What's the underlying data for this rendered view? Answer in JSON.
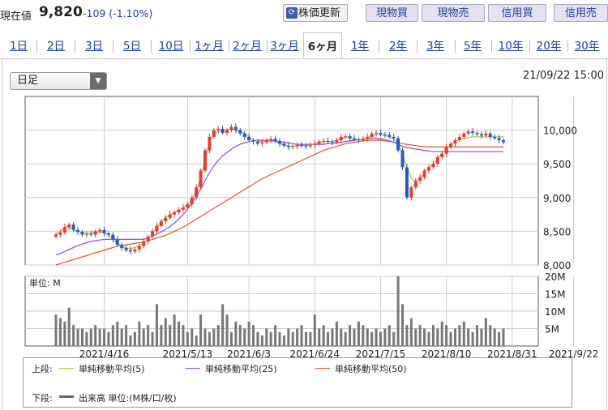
{
  "header": {
    "price_label": "現在値",
    "price": "9,820",
    "change": "-109 (-1.10%)",
    "update_button": "株価更新",
    "buttons": [
      "現物買",
      "現物売",
      "信用買",
      "信用売"
    ]
  },
  "tabs": [
    "1日",
    "2日",
    "3日",
    "5日",
    "10日",
    "1ヶ月",
    "2ヶ月",
    "3ヶ月",
    "6ヶ月",
    "1年",
    "2年",
    "3年",
    "5年",
    "10年",
    "20年",
    "30年"
  ],
  "selected_tab": "6ヶ月",
  "period_select": "日足",
  "datetime": "21/09/22 15:00",
  "legend": {
    "upper_label": "上段:",
    "lower_label": "下段:",
    "ma5": "単純移動平均(5)",
    "ma25": "単純移動平均(25)",
    "ma50": "単純移動平均(50)",
    "volume": "出来高 単位:(M株/口/枚)"
  },
  "colors": {
    "up": "#e23b3b",
    "down": "#2b55c8",
    "ma5": "#a8c832",
    "ma25": "#9a46e0",
    "ma50": "#e2552a",
    "volume": "#777777"
  },
  "chart_data": {
    "type": "candlestick",
    "x_ticks": [
      "2021/4/16",
      "2021/5/13",
      "2021/6/3",
      "2021/6/24",
      "2021/7/15",
      "2021/8/10",
      "2021/8/31",
      "2021/9/22"
    ],
    "x_tick_index": [
      11,
      30,
      44,
      59,
      74,
      89,
      104,
      118
    ],
    "ylim": [
      8000,
      10500
    ],
    "y_ticks": [
      8000,
      8500,
      9000,
      9500,
      10000
    ],
    "y_tick_labels": [
      "8,000",
      "8,500",
      "9,000",
      "9,500",
      "10,000"
    ],
    "volume_unit_label": "単位: M",
    "volume_ylim": [
      0,
      20
    ],
    "volume_ticks": [
      5,
      10,
      15,
      20
    ],
    "volume_tick_labels": [
      "5M",
      "10M",
      "15M",
      "20M"
    ],
    "series": [
      {
        "name": "単純移動平均(5)",
        "values": [
          8450,
          8500,
          8560,
          8560,
          8520,
          8500,
          8480,
          8470,
          8470,
          8480,
          8490,
          8480,
          8440,
          8380,
          8320,
          8280,
          8250,
          8240,
          8260,
          8290,
          8320,
          8380,
          8460,
          8560,
          8650,
          8710,
          8740,
          8780,
          8810,
          8850,
          8900,
          8980,
          9100,
          9300,
          9550,
          9820,
          9950,
          9980,
          9990,
          10000,
          10020,
          10000,
          9980,
          9950,
          9900,
          9860,
          9840,
          9830,
          9830,
          9830,
          9830,
          9800,
          9780,
          9760,
          9760,
          9770,
          9770,
          9770,
          9780,
          9800,
          9820,
          9830,
          9830,
          9830,
          9850,
          9880,
          9890,
          9880,
          9860,
          9860,
          9870,
          9890,
          9920,
          9930,
          9930,
          9920,
          9900,
          9870,
          9800,
          9650,
          9450,
          9280,
          9230,
          9290,
          9370,
          9440,
          9500,
          9580,
          9650,
          9720,
          9780,
          9830,
          9860,
          9880,
          9890,
          9900,
          9900,
          9900,
          9900,
          9900,
          9900,
          9900,
          9900
        ]
      },
      {
        "name": "単純移動平均(25)",
        "values": [
          8150,
          8170,
          8200,
          8230,
          8260,
          8290,
          8310,
          8330,
          8350,
          8360,
          8370,
          8380,
          8380,
          8380,
          8380,
          8380,
          8380,
          8380,
          8380,
          8380,
          8380,
          8400,
          8430,
          8460,
          8490,
          8530,
          8570,
          8620,
          8680,
          8750,
          8830,
          8920,
          9020,
          9130,
          9250,
          9370,
          9470,
          9550,
          9620,
          9670,
          9720,
          9760,
          9790,
          9810,
          9830,
          9840,
          9850,
          9850,
          9850,
          9850,
          9840,
          9830,
          9820,
          9810,
          9800,
          9790,
          9790,
          9790,
          9790,
          9790,
          9790,
          9790,
          9800,
          9800,
          9810,
          9820,
          9830,
          9840,
          9850,
          9860,
          9870,
          9880,
          9880,
          9880,
          9870,
          9860,
          9840,
          9820,
          9790,
          9760,
          9740,
          9730,
          9720,
          9710,
          9700,
          9690,
          9680,
          9680,
          9680,
          9680,
          9680,
          9680,
          9680,
          9680,
          9680,
          9680,
          9680,
          9680,
          9680,
          9680,
          9680,
          9680,
          9680
        ]
      },
      {
        "name": "単純移動平均(50)",
        "values": [
          8000,
          8020,
          8040,
          8060,
          8080,
          8100,
          8120,
          8140,
          8160,
          8180,
          8200,
          8220,
          8240,
          8260,
          8280,
          8290,
          8300,
          8310,
          8320,
          8330,
          8340,
          8360,
          8380,
          8400,
          8420,
          8440,
          8470,
          8500,
          8530,
          8560,
          8600,
          8640,
          8680,
          8720,
          8760,
          8800,
          8840,
          8880,
          8920,
          8960,
          9000,
          9040,
          9080,
          9120,
          9160,
          9200,
          9240,
          9280,
          9310,
          9340,
          9370,
          9400,
          9430,
          9460,
          9490,
          9520,
          9550,
          9580,
          9610,
          9640,
          9670,
          9700,
          9720,
          9740,
          9760,
          9780,
          9800,
          9810,
          9820,
          9830,
          9840,
          9850,
          9850,
          9850,
          9850,
          9840,
          9830,
          9820,
          9810,
          9800,
          9790,
          9780,
          9770,
          9760,
          9755,
          9750,
          9750,
          9750,
          9750,
          9750,
          9750,
          9750,
          9750,
          9750,
          9750,
          9750,
          9750,
          9750,
          9750,
          9750,
          9750,
          9750,
          9750
        ]
      },
      {
        "name": "close",
        "values": [
          8450,
          8480,
          8560,
          8600,
          8520,
          8490,
          8450,
          8460,
          8450,
          8500,
          8520,
          8470,
          8450,
          8380,
          8300,
          8250,
          8220,
          8200,
          8230,
          8280,
          8350,
          8420,
          8500,
          8580,
          8650,
          8700,
          8750,
          8780,
          8820,
          8850,
          8900,
          9000,
          9150,
          9400,
          9700,
          9900,
          10000,
          10020,
          9960,
          10000,
          10050,
          10000,
          9950,
          9900,
          9850,
          9830,
          9800,
          9820,
          9850,
          9870,
          9840,
          9800,
          9770,
          9750,
          9760,
          9780,
          9770,
          9760,
          9780,
          9800,
          9830,
          9840,
          9830,
          9820,
          9850,
          9900,
          9910,
          9880,
          9860,
          9850,
          9870,
          9900,
          9950,
          9960,
          9940,
          9930,
          9900,
          9880,
          9700,
          9450,
          9000,
          9150,
          9250,
          9300,
          9400,
          9450,
          9500,
          9600,
          9650,
          9750,
          9800,
          9850,
          9900,
          9950,
          9980,
          9960,
          9940,
          9920,
          9950,
          9900,
          9880,
          9850,
          9820
        ]
      },
      {
        "name": "volume",
        "values": [
          9,
          8,
          7,
          11,
          6,
          5,
          5,
          4,
          5,
          6,
          5,
          5,
          4,
          6,
          7,
          5,
          6,
          3,
          4,
          7,
          5,
          6,
          4,
          12,
          6,
          8,
          6,
          9,
          7,
          6,
          4,
          5,
          3,
          9,
          5,
          4,
          5,
          6,
          12,
          9,
          4,
          7,
          6,
          5,
          7,
          6,
          4,
          3,
          5,
          4,
          6,
          4,
          3,
          5,
          4,
          5,
          6,
          4,
          4,
          9,
          5,
          6,
          4,
          5,
          7,
          5,
          4,
          6,
          5,
          7,
          6,
          5,
          4,
          5,
          4,
          5,
          6,
          4,
          20,
          12,
          6,
          8,
          5,
          6,
          5,
          4,
          6,
          5,
          7,
          6,
          4,
          5,
          6,
          7,
          5,
          4,
          6,
          5,
          8,
          6,
          5,
          4,
          5
        ]
      }
    ]
  }
}
